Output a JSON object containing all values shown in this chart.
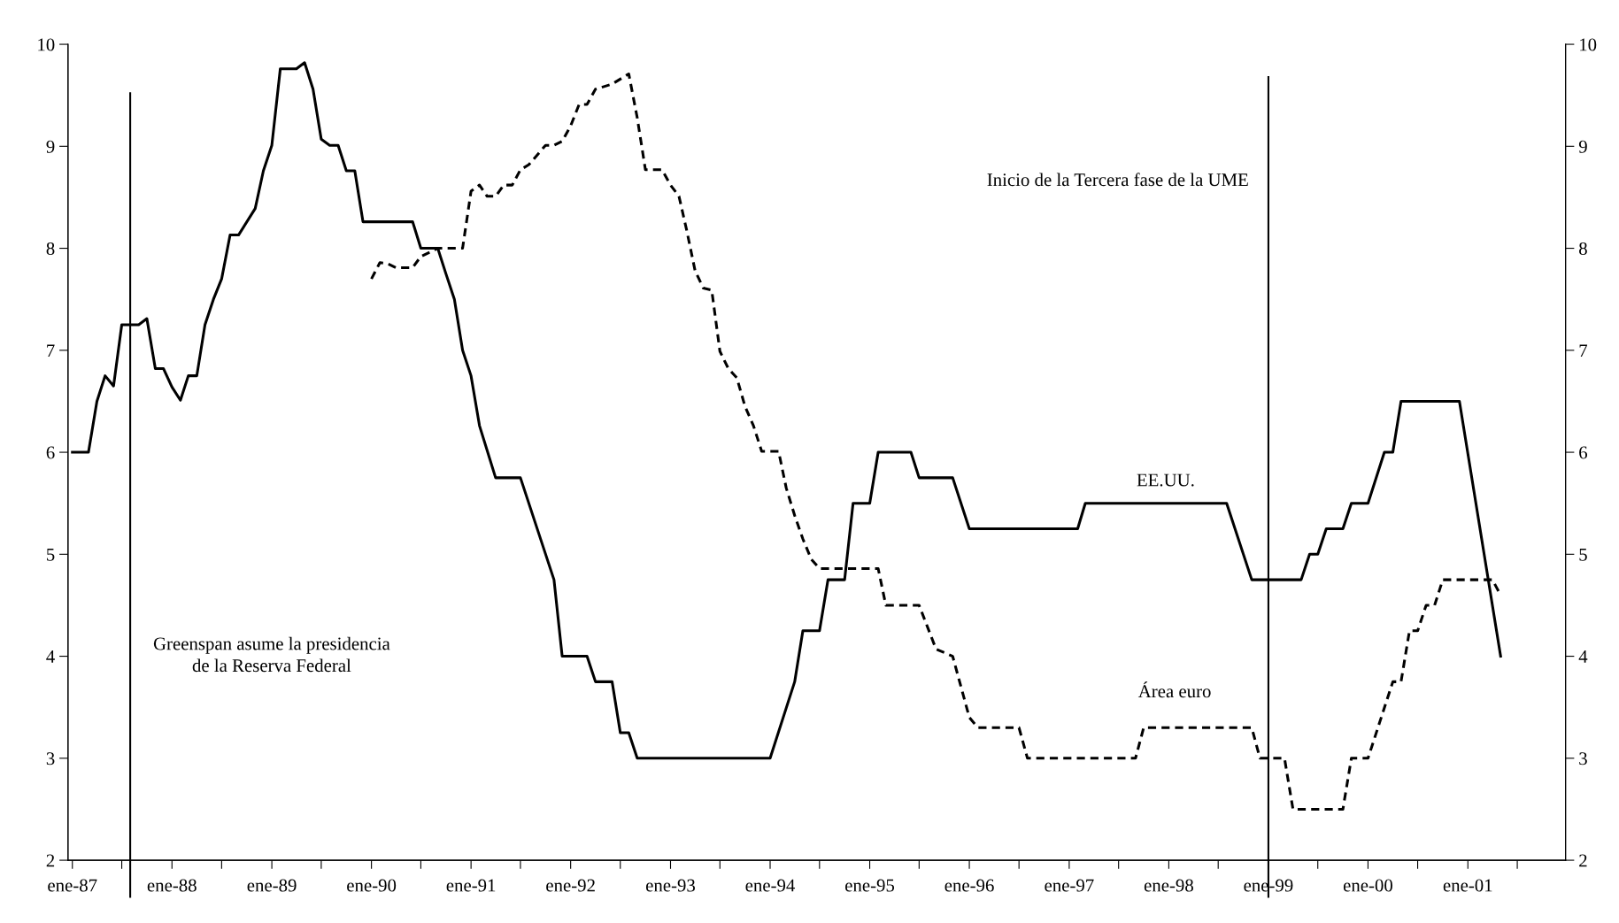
{
  "chart_data": {
    "type": "line",
    "xlim": [
      "1986-12-16",
      "2001-12-25"
    ],
    "ylim": [
      2,
      10
    ],
    "yticks": [
      2,
      3,
      4,
      5,
      6,
      7,
      8,
      9,
      10
    ],
    "y2lim": [
      2,
      10
    ],
    "y2ticks": [
      2,
      3,
      4,
      5,
      6,
      7,
      8,
      9,
      10
    ],
    "xticks": [
      {
        "value": "1987-01",
        "label": "ene-87"
      },
      {
        "value": "1987-07",
        "label": null
      },
      {
        "value": "1988-01",
        "label": "ene-88"
      },
      {
        "value": "1988-07",
        "label": null
      },
      {
        "value": "1989-01",
        "label": "ene-89"
      },
      {
        "value": "1989-07",
        "label": null
      },
      {
        "value": "1990-01",
        "label": "ene-90"
      },
      {
        "value": "1990-07",
        "label": null
      },
      {
        "value": "1991-01",
        "label": "ene-91"
      },
      {
        "value": "1991-07",
        "label": null
      },
      {
        "value": "1992-01",
        "label": "ene-92"
      },
      {
        "value": "1992-07",
        "label": null
      },
      {
        "value": "1993-01",
        "label": "ene-93"
      },
      {
        "value": "1993-07",
        "label": null
      },
      {
        "value": "1994-01",
        "label": "ene-94"
      },
      {
        "value": "1994-07",
        "label": null
      },
      {
        "value": "1995-01",
        "label": "ene-95"
      },
      {
        "value": "1995-07",
        "label": null
      },
      {
        "value": "1996-01",
        "label": "ene-96"
      },
      {
        "value": "1996-07",
        "label": null
      },
      {
        "value": "1997-01",
        "label": "ene-97"
      },
      {
        "value": "1997-07",
        "label": null
      },
      {
        "value": "1998-01",
        "label": "ene-98"
      },
      {
        "value": "1998-07",
        "label": null
      },
      {
        "value": "1999-01",
        "label": "ene-99"
      },
      {
        "value": "1999-07",
        "label": null
      },
      {
        "value": "2000-01",
        "label": "ene-00"
      },
      {
        "value": "2000-07",
        "label": null
      },
      {
        "value": "2001-01",
        "label": "ene-01"
      },
      {
        "value": "2001-07",
        "label": null
      }
    ],
    "grid": false,
    "legend": false,
    "series": [
      {
        "name": "EE.UU.",
        "color": "#000000",
        "line_style": "solid",
        "x": [
          "1987-01",
          "1987-03",
          "1987-04",
          "1987-05",
          "1987-06",
          "1987-07",
          "1987-09",
          "1987-10",
          "1987-11",
          "1987-12",
          "1988-01",
          "1988-02",
          "1988-03",
          "1988-04",
          "1988-05",
          "1988-06",
          "1988-07",
          "1988-08",
          "1988-09",
          "1988-11",
          "1988-12",
          "1989-01",
          "1989-02",
          "1989-04",
          "1989-05",
          "1989-06",
          "1989-07",
          "1989-08",
          "1989-09",
          "1989-10",
          "1989-11",
          "1989-12",
          "1990-06",
          "1990-07",
          "1990-09",
          "1990-10",
          "1990-11",
          "1990-12",
          "1991-01",
          "1991-02",
          "1991-04",
          "1991-07",
          "1991-11",
          "1991-12",
          "1992-03",
          "1992-04",
          "1992-06",
          "1992-07",
          "1992-08",
          "1992-09",
          "1994-01",
          "1994-04",
          "1994-05",
          "1994-07",
          "1994-08",
          "1994-10",
          "1994-11",
          "1995-01",
          "1995-02",
          "1995-06",
          "1995-07",
          "1995-11",
          "1996-01",
          "1997-02",
          "1997-03",
          "1998-08",
          "1998-11",
          "1999-05",
          "1999-06",
          "1999-07",
          "1999-08",
          "1999-10",
          "1999-11",
          "2000-01",
          "2000-03",
          "2000-04",
          "2000-05",
          "2000-12",
          "2001-05"
        ],
        "values": [
          6.0,
          6.0,
          6.5,
          6.75,
          6.65,
          7.25,
          7.25,
          7.31,
          6.82,
          6.82,
          6.64,
          6.51,
          6.75,
          6.75,
          7.25,
          7.5,
          7.7,
          8.13,
          8.13,
          8.39,
          8.76,
          9.01,
          9.76,
          9.76,
          9.82,
          9.56,
          9.07,
          9.01,
          9.01,
          8.76,
          8.76,
          8.26,
          8.26,
          8.0,
          8.0,
          7.75,
          7.5,
          7.0,
          6.75,
          6.26,
          5.75,
          5.75,
          4.75,
          4.0,
          4.0,
          3.75,
          3.75,
          3.25,
          3.25,
          3.0,
          3.0,
          3.75,
          4.25,
          4.25,
          4.75,
          4.75,
          5.5,
          5.5,
          6.0,
          6.0,
          5.75,
          5.75,
          5.25,
          5.25,
          5.5,
          5.5,
          4.75,
          4.75,
          5.0,
          5.0,
          5.25,
          5.25,
          5.5,
          5.5,
          6.0,
          6.0,
          6.5,
          6.5,
          4.0
        ]
      },
      {
        "name": "Área euro",
        "color": "#000000",
        "line_style": "dashed",
        "x": [
          "1990-01",
          "1990-02",
          "1990-03",
          "1990-04",
          "1990-06",
          "1990-07",
          "1990-09",
          "1990-12",
          "1991-01",
          "1991-02",
          "1991-03",
          "1991-04",
          "1991-05",
          "1991-06",
          "1991-07",
          "1991-08",
          "1991-10",
          "1991-11",
          "1991-12",
          "1992-01",
          "1992-02",
          "1992-03",
          "1992-04",
          "1992-06",
          "1992-08",
          "1992-09",
          "1992-10",
          "1992-12",
          "1993-01",
          "1993-02",
          "1993-03",
          "1993-04",
          "1993-05",
          "1993-06",
          "1993-07",
          "1993-08",
          "1993-09",
          "1993-10",
          "1993-11",
          "1993-12",
          "1994-02",
          "1994-03",
          "1994-04",
          "1994-05",
          "1994-06",
          "1994-07",
          "1995-02",
          "1995-03",
          "1995-07",
          "1995-09",
          "1995-11",
          "1996-01",
          "1996-02",
          "1996-07",
          "1996-08",
          "1997-09",
          "1997-10",
          "1998-11",
          "1998-12",
          "1999-03",
          "1999-04",
          "1999-10",
          "1999-11",
          "2000-01",
          "2000-04",
          "2000-05",
          "2000-06",
          "2000-07",
          "2000-08",
          "2000-09",
          "2000-10",
          "2001-04",
          "2001-05"
        ],
        "values": [
          7.7,
          7.86,
          7.85,
          7.81,
          7.81,
          7.92,
          8.0,
          8.0,
          8.56,
          8.62,
          8.51,
          8.51,
          8.62,
          8.62,
          8.77,
          8.82,
          9.01,
          9.01,
          9.05,
          9.2,
          9.41,
          9.41,
          9.56,
          9.61,
          9.71,
          9.28,
          8.77,
          8.77,
          8.62,
          8.51,
          8.18,
          7.78,
          7.61,
          7.59,
          6.99,
          6.82,
          6.73,
          6.45,
          6.26,
          6.01,
          6.01,
          5.65,
          5.38,
          5.15,
          4.95,
          4.86,
          4.86,
          4.5,
          4.5,
          4.07,
          4.0,
          3.4,
          3.3,
          3.3,
          3.0,
          3.0,
          3.3,
          3.3,
          3.0,
          3.0,
          2.5,
          2.5,
          3.0,
          3.0,
          3.75,
          3.75,
          4.25,
          4.25,
          4.5,
          4.5,
          4.75,
          4.75,
          4.6
        ]
      }
    ],
    "ref_lines": [
      {
        "axis": "x",
        "value": "1987-08",
        "label": "Greenspan asume la presidencia\nde la Reserva Federal",
        "color": "#000000"
      },
      {
        "axis": "x",
        "value": "1999-01",
        "label": "Inicio de la Tercera fase de la UME",
        "color": "#000000"
      }
    ]
  }
}
